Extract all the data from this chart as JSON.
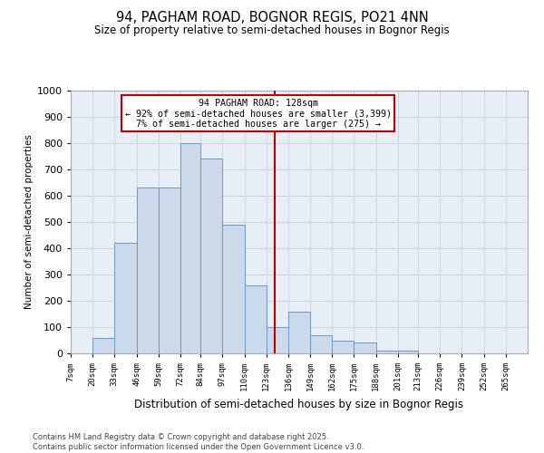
{
  "title1": "94, PAGHAM ROAD, BOGNOR REGIS, PO21 4NN",
  "title2": "Size of property relative to semi-detached houses in Bognor Regis",
  "xlabel": "Distribution of semi-detached houses by size in Bognor Regis",
  "ylabel": "Number of semi-detached properties",
  "bins": [
    "7sqm",
    "20sqm",
    "33sqm",
    "46sqm",
    "59sqm",
    "72sqm",
    "84sqm",
    "97sqm",
    "110sqm",
    "123sqm",
    "136sqm",
    "149sqm",
    "162sqm",
    "175sqm",
    "188sqm",
    "201sqm",
    "213sqm",
    "226sqm",
    "239sqm",
    "252sqm",
    "265sqm"
  ],
  "bin_edges": [
    7,
    20,
    33,
    46,
    59,
    72,
    84,
    97,
    110,
    123,
    136,
    149,
    162,
    175,
    188,
    201,
    213,
    226,
    239,
    252,
    265,
    278
  ],
  "values": [
    0,
    60,
    420,
    630,
    630,
    800,
    740,
    490,
    260,
    100,
    160,
    70,
    50,
    40,
    10,
    10,
    0,
    0,
    0,
    0,
    0
  ],
  "property_size": 128,
  "annotation_title": "94 PAGHAM ROAD: 128sqm",
  "annotation_line1": "← 92% of semi-detached houses are smaller (3,399)",
  "annotation_line2": "7% of semi-detached houses are larger (275) →",
  "bar_facecolor": "#ccd9ea",
  "bar_edgecolor": "#6699cc",
  "vline_color": "#bb0000",
  "annotation_box_color": "#bb0000",
  "grid_color": "#c8d0dc",
  "background_color": "#e8eef5",
  "ylim": [
    0,
    1000
  ],
  "yticks": [
    0,
    100,
    200,
    300,
    400,
    500,
    600,
    700,
    800,
    900,
    1000
  ],
  "footer1": "Contains HM Land Registry data © Crown copyright and database right 2025.",
  "footer2": "Contains public sector information licensed under the Open Government Licence v3.0."
}
